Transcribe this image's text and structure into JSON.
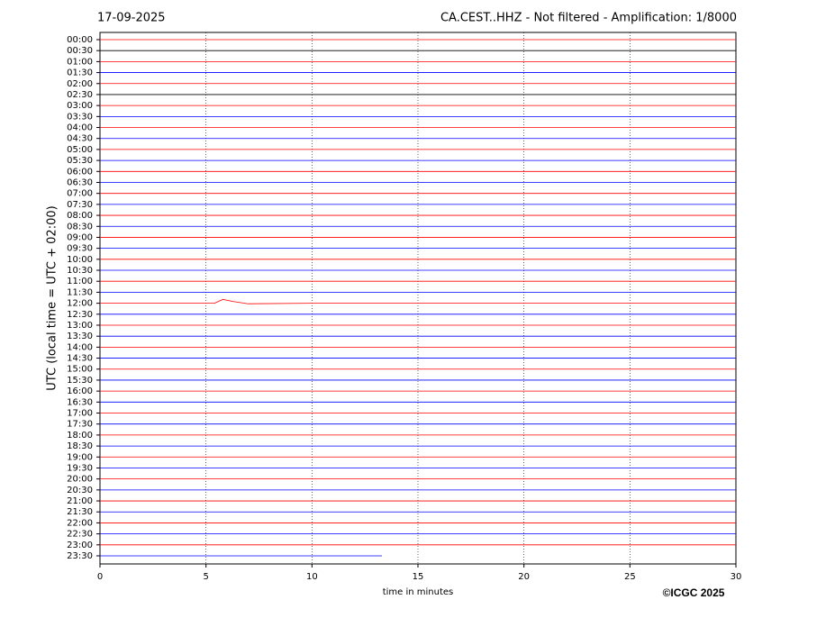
{
  "chart_data": {
    "type": "helicorder",
    "title": "17-09-2025",
    "subtitle": "CA.CEST..HHZ - Not filtered - Amplification: 1/8000",
    "y_label": "UTC (local time = UTC + 02:00)",
    "x_label": "time in minutes",
    "credit": "©ICGC 2025",
    "xlim": [
      0,
      30
    ],
    "xticks": [
      0,
      5,
      10,
      15,
      20,
      25,
      30
    ],
    "grid": true,
    "series": [
      {
        "name": "00:00",
        "color": "#ff0000",
        "x": [
          0,
          30
        ],
        "values": [
          0,
          0
        ]
      },
      {
        "name": "00:30",
        "color": "#000000",
        "x": [
          0,
          30
        ],
        "values": [
          0,
          0
        ]
      },
      {
        "name": "01:00",
        "color": "#ff0000",
        "x": [
          0,
          30
        ],
        "values": [
          0,
          0
        ]
      },
      {
        "name": "01:30",
        "color": "#0000ff",
        "x": [
          0,
          30
        ],
        "values": [
          0,
          0
        ]
      },
      {
        "name": "02:00",
        "color": "#ff0000",
        "x": [
          0,
          30
        ],
        "values": [
          0,
          0
        ]
      },
      {
        "name": "02:30",
        "color": "#000000",
        "x": [
          0,
          30
        ],
        "values": [
          0,
          0
        ]
      },
      {
        "name": "03:00",
        "color": "#ff0000",
        "x": [
          0,
          30
        ],
        "values": [
          0,
          0
        ]
      },
      {
        "name": "03:30",
        "color": "#0000ff",
        "x": [
          0,
          30
        ],
        "values": [
          0,
          0
        ]
      },
      {
        "name": "04:00",
        "color": "#ff0000",
        "x": [
          0,
          30
        ],
        "values": [
          0,
          0
        ]
      },
      {
        "name": "04:30",
        "color": "#0000ff",
        "x": [
          0,
          30
        ],
        "values": [
          0,
          0
        ]
      },
      {
        "name": "05:00",
        "color": "#ff0000",
        "x": [
          0,
          30
        ],
        "values": [
          0,
          0
        ]
      },
      {
        "name": "05:30",
        "color": "#0000ff",
        "x": [
          0,
          30
        ],
        "values": [
          0,
          0
        ]
      },
      {
        "name": "06:00",
        "color": "#ff0000",
        "x": [
          0,
          30
        ],
        "values": [
          0,
          0
        ]
      },
      {
        "name": "06:30",
        "color": "#0000ff",
        "x": [
          0,
          30
        ],
        "values": [
          0,
          0
        ]
      },
      {
        "name": "07:00",
        "color": "#ff0000",
        "x": [
          0,
          30
        ],
        "values": [
          0,
          0
        ]
      },
      {
        "name": "07:30",
        "color": "#0000ff",
        "x": [
          0,
          30
        ],
        "values": [
          0,
          0
        ]
      },
      {
        "name": "08:00",
        "color": "#ff0000",
        "x": [
          0,
          30
        ],
        "values": [
          0,
          0
        ]
      },
      {
        "name": "08:30",
        "color": "#0000ff",
        "x": [
          0,
          30
        ],
        "values": [
          0,
          0
        ]
      },
      {
        "name": "09:00",
        "color": "#ff0000",
        "x": [
          0,
          30
        ],
        "values": [
          0,
          0
        ]
      },
      {
        "name": "09:30",
        "color": "#0000ff",
        "x": [
          0,
          30
        ],
        "values": [
          0,
          0
        ]
      },
      {
        "name": "10:00",
        "color": "#ff0000",
        "x": [
          0,
          30
        ],
        "values": [
          0,
          0
        ]
      },
      {
        "name": "10:30",
        "color": "#0000ff",
        "x": [
          0,
          30
        ],
        "values": [
          0,
          0
        ]
      },
      {
        "name": "11:00",
        "color": "#ff0000",
        "x": [
          0,
          30
        ],
        "values": [
          0,
          0
        ]
      },
      {
        "name": "11:30",
        "color": "#0000ff",
        "x": [
          0,
          30
        ],
        "values": [
          0,
          0
        ]
      },
      {
        "name": "12:00",
        "color": "#ff0000",
        "x": [
          0,
          5.4,
          5.8,
          6.3,
          7,
          10,
          30
        ],
        "values": [
          0,
          0,
          0.35,
          0.15,
          -0.05,
          0,
          0
        ]
      },
      {
        "name": "12:30",
        "color": "#0000ff",
        "x": [
          0,
          30
        ],
        "values": [
          0,
          0
        ]
      },
      {
        "name": "13:00",
        "color": "#ff0000",
        "x": [
          0,
          30
        ],
        "values": [
          0,
          0
        ]
      },
      {
        "name": "13:30",
        "color": "#0000ff",
        "x": [
          0,
          30
        ],
        "values": [
          0,
          0
        ]
      },
      {
        "name": "14:00",
        "color": "#ff0000",
        "x": [
          0,
          30
        ],
        "values": [
          0,
          0
        ]
      },
      {
        "name": "14:30",
        "color": "#0000ff",
        "x": [
          0,
          30
        ],
        "values": [
          0,
          0
        ]
      },
      {
        "name": "15:00",
        "color": "#ff0000",
        "x": [
          0,
          30
        ],
        "values": [
          0,
          0
        ]
      },
      {
        "name": "15:30",
        "color": "#0000ff",
        "x": [
          0,
          30
        ],
        "values": [
          0,
          0
        ]
      },
      {
        "name": "16:00",
        "color": "#ff0000",
        "x": [
          0,
          30
        ],
        "values": [
          0,
          0
        ]
      },
      {
        "name": "16:30",
        "color": "#0000ff",
        "x": [
          0,
          30
        ],
        "values": [
          0,
          0
        ]
      },
      {
        "name": "17:00",
        "color": "#ff0000",
        "x": [
          0,
          30
        ],
        "values": [
          0,
          0
        ]
      },
      {
        "name": "17:30",
        "color": "#0000ff",
        "x": [
          0,
          30
        ],
        "values": [
          0,
          0
        ]
      },
      {
        "name": "18:00",
        "color": "#ff0000",
        "x": [
          0,
          30
        ],
        "values": [
          0,
          0
        ]
      },
      {
        "name": "18:30",
        "color": "#0000ff",
        "x": [
          0,
          30
        ],
        "values": [
          0,
          0
        ]
      },
      {
        "name": "19:00",
        "color": "#ff0000",
        "x": [
          0,
          30
        ],
        "values": [
          0,
          0
        ]
      },
      {
        "name": "19:30",
        "color": "#0000ff",
        "x": [
          0,
          30
        ],
        "values": [
          0,
          0
        ]
      },
      {
        "name": "20:00",
        "color": "#ff0000",
        "x": [
          0,
          30
        ],
        "values": [
          0,
          0
        ]
      },
      {
        "name": "20:30",
        "color": "#0000ff",
        "x": [
          0,
          30
        ],
        "values": [
          0,
          0
        ]
      },
      {
        "name": "21:00",
        "color": "#ff0000",
        "x": [
          0,
          30
        ],
        "values": [
          0,
          0
        ]
      },
      {
        "name": "21:30",
        "color": "#0000ff",
        "x": [
          0,
          30
        ],
        "values": [
          0,
          0
        ]
      },
      {
        "name": "22:00",
        "color": "#ff0000",
        "x": [
          0,
          30
        ],
        "values": [
          0,
          0
        ]
      },
      {
        "name": "22:30",
        "color": "#0000ff",
        "x": [
          0,
          30
        ],
        "values": [
          0,
          0
        ]
      },
      {
        "name": "23:00",
        "color": "#ff0000",
        "x": [
          0,
          30
        ],
        "values": [
          0,
          0
        ]
      },
      {
        "name": "23:30",
        "color": "#0000ff",
        "x": [
          0,
          13.3
        ],
        "values": [
          0,
          0
        ]
      }
    ]
  }
}
